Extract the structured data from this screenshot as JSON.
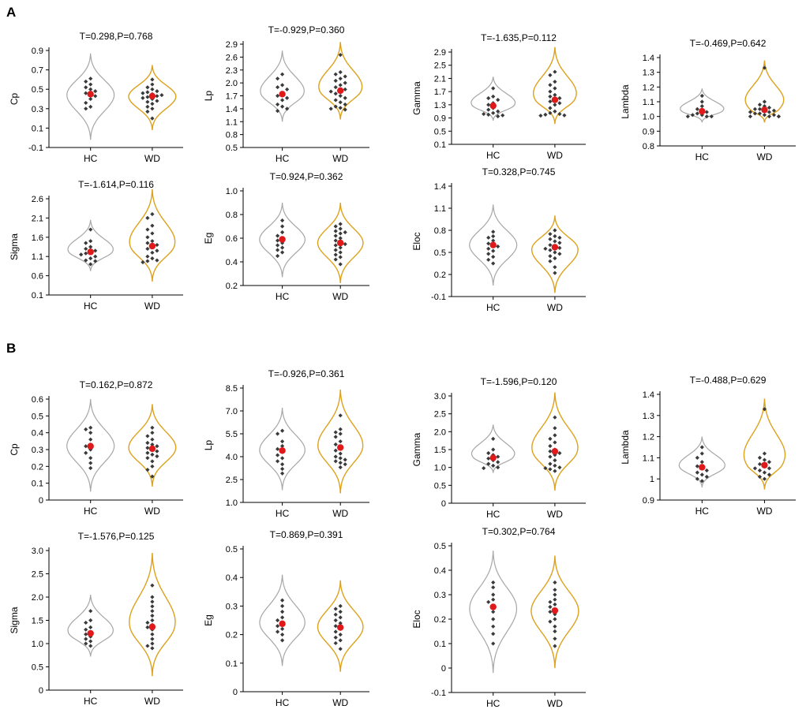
{
  "figure": {
    "panel_a_label": "A",
    "panel_b_label": "B"
  },
  "colors": {
    "hc_outline": "#a6a6a6",
    "wd_outline": "#dca21c",
    "point": "#3a3a3a",
    "mean": "#e0191b",
    "axis": "#000000"
  },
  "chart_data": [
    {
      "panel": "A",
      "type": "violin-dot",
      "title": "T=0.298,P=0.768",
      "ylabel": "Cp",
      "categories": [
        "HC",
        "WD"
      ],
      "ylim": [
        -0.1,
        0.9
      ],
      "yticks": [
        "-0.1",
        "0.1",
        "0.3",
        "0.5",
        "0.7",
        "0.9"
      ],
      "violin_range": {
        "HC": [
          -0.02,
          0.87
        ],
        "WD": [
          0.08,
          0.75
        ]
      },
      "mean": {
        "HC": 0.45,
        "WD": 0.43
      },
      "points": {
        "HC": [
          0.61,
          0.58,
          0.55,
          0.52,
          0.5,
          0.48,
          0.46,
          0.45,
          0.43,
          0.4,
          0.36,
          0.32,
          0.3
        ],
        "WD": [
          0.6,
          0.55,
          0.52,
          0.5,
          0.48,
          0.47,
          0.46,
          0.45,
          0.44,
          0.43,
          0.42,
          0.41,
          0.4,
          0.38,
          0.37,
          0.35,
          0.32,
          0.3,
          0.27,
          0.2
        ]
      }
    },
    {
      "panel": "A",
      "type": "violin-dot",
      "title": "T=-0.929,P=0.360",
      "ylabel": "Lp",
      "categories": [
        "HC",
        "WD"
      ],
      "ylim": [
        0.5,
        2.9
      ],
      "yticks": [
        "0.5",
        "0.8",
        "1.1",
        "1.4",
        "1.7",
        "2.0",
        "2.3",
        "2.6",
        "2.9"
      ],
      "violin_range": {
        "HC": [
          1.1,
          2.75
        ],
        "WD": [
          1.15,
          2.95
        ]
      },
      "mean": {
        "HC": 1.74,
        "WD": 1.82
      },
      "points": {
        "HC": [
          2.2,
          2.1,
          1.95,
          1.9,
          1.85,
          1.75,
          1.7,
          1.65,
          1.6,
          1.5,
          1.45,
          1.4,
          1.35
        ],
        "WD": [
          2.65,
          2.25,
          2.2,
          2.15,
          2.1,
          2.05,
          2.0,
          1.95,
          1.9,
          1.85,
          1.82,
          1.8,
          1.75,
          1.7,
          1.65,
          1.6,
          1.55,
          1.5,
          1.45,
          1.42,
          1.4,
          1.38
        ]
      }
    },
    {
      "panel": "A",
      "type": "violin-dot",
      "title": "T=-1.635,P=0.112",
      "ylabel": "Gamma",
      "categories": [
        "HC",
        "WD"
      ],
      "ylim": [
        0.1,
        2.9
      ],
      "yticks": [
        "0.1",
        "0.5",
        "0.9",
        "1.3",
        "1.7",
        "2.1",
        "2.5",
        "2.9"
      ],
      "violin_range": {
        "HC": [
          0.82,
          2.15
        ],
        "WD": [
          0.72,
          3.05
        ]
      },
      "mean": {
        "HC": 1.27,
        "WD": 1.45
      },
      "points": {
        "HC": [
          1.8,
          1.55,
          1.5,
          1.45,
          1.35,
          1.3,
          1.2,
          1.15,
          1.1,
          1.05,
          1.02,
          1.0,
          0.98,
          0.95
        ],
        "WD": [
          2.3,
          2.2,
          2.0,
          1.9,
          1.8,
          1.7,
          1.6,
          1.55,
          1.5,
          1.45,
          1.4,
          1.35,
          1.3,
          1.2,
          1.1,
          1.05,
          1.02,
          1.0,
          0.98,
          0.97
        ]
      }
    },
    {
      "panel": "A",
      "type": "violin-dot",
      "title": "T=-0.469,P=0.642",
      "ylabel": "Lambda",
      "categories": [
        "HC",
        "WD"
      ],
      "ylim": [
        0.8,
        1.4
      ],
      "yticks": [
        "0.8",
        "0.9",
        "1.0",
        "1.1",
        "1.2",
        "1.3",
        "1.4"
      ],
      "violin_range": {
        "HC": [
          0.96,
          1.19
        ],
        "WD": [
          0.96,
          1.38
        ]
      },
      "mean": {
        "HC": 1.035,
        "WD": 1.045
      },
      "points": {
        "HC": [
          1.14,
          1.1,
          1.07,
          1.05,
          1.04,
          1.03,
          1.02,
          1.01,
          1.01,
          1.0,
          1.0,
          1.0
        ],
        "WD": [
          1.33,
          1.1,
          1.08,
          1.07,
          1.06,
          1.05,
          1.05,
          1.04,
          1.04,
          1.03,
          1.03,
          1.02,
          1.02,
          1.01,
          1.01,
          1.0,
          1.0,
          1.0,
          1.0
        ]
      }
    },
    {
      "panel": "A",
      "type": "violin-dot",
      "title": "T=-1.614,P=0.116",
      "ylabel": "Sigma",
      "categories": [
        "HC",
        "WD"
      ],
      "ylim": [
        0.1,
        2.6
      ],
      "yticks": [
        "0.1",
        "0.6",
        "1.1",
        "1.6",
        "2.1",
        "2.6"
      ],
      "violin_range": {
        "HC": [
          0.72,
          2.05
        ],
        "WD": [
          0.45,
          2.85
        ]
      },
      "mean": {
        "HC": 1.22,
        "WD": 1.37
      },
      "points": {
        "HC": [
          1.8,
          1.5,
          1.45,
          1.35,
          1.3,
          1.25,
          1.2,
          1.18,
          1.15,
          1.1,
          1.05,
          1.0,
          0.98,
          0.9
        ],
        "WD": [
          2.2,
          2.1,
          1.9,
          1.8,
          1.7,
          1.6,
          1.5,
          1.45,
          1.4,
          1.35,
          1.3,
          1.25,
          1.2,
          1.1,
          1.05,
          1.0,
          0.98,
          0.95
        ]
      }
    },
    {
      "panel": "A",
      "type": "violin-dot",
      "title": "T=0.924,P=0.362",
      "ylabel": "Eg",
      "categories": [
        "HC",
        "WD"
      ],
      "ylim": [
        0.2,
        1.0
      ],
      "yticks": [
        "0.2",
        "0.4",
        "0.6",
        "0.8",
        "1.0"
      ],
      "violin_range": {
        "HC": [
          0.27,
          0.9
        ],
        "WD": [
          0.22,
          0.9
        ]
      },
      "mean": {
        "HC": 0.59,
        "WD": 0.56
      },
      "points": {
        "HC": [
          0.75,
          0.7,
          0.65,
          0.62,
          0.6,
          0.58,
          0.56,
          0.54,
          0.52,
          0.5,
          0.48,
          0.45
        ],
        "WD": [
          0.72,
          0.7,
          0.68,
          0.66,
          0.65,
          0.64,
          0.62,
          0.6,
          0.58,
          0.56,
          0.55,
          0.54,
          0.52,
          0.5,
          0.48,
          0.46,
          0.44,
          0.42,
          0.38
        ]
      }
    },
    {
      "panel": "A",
      "type": "violin-dot",
      "title": "T=0.328,P=0.745",
      "ylabel": "Eloc",
      "categories": [
        "HC",
        "WD"
      ],
      "ylim": [
        -0.1,
        1.4
      ],
      "yticks": [
        "-0.1",
        "0.2",
        "0.5",
        "0.8",
        "1.1",
        "1.4"
      ],
      "violin_range": {
        "HC": [
          0.05,
          1.15
        ],
        "WD": [
          -0.05,
          1.0
        ]
      },
      "mean": {
        "HC": 0.6,
        "WD": 0.57
      },
      "points": {
        "HC": [
          0.78,
          0.72,
          0.7,
          0.66,
          0.62,
          0.6,
          0.58,
          0.55,
          0.52,
          0.48,
          0.44,
          0.4,
          0.35
        ],
        "WD": [
          0.8,
          0.75,
          0.72,
          0.7,
          0.68,
          0.65,
          0.63,
          0.6,
          0.58,
          0.56,
          0.55,
          0.53,
          0.5,
          0.48,
          0.45,
          0.42,
          0.38,
          0.3,
          0.22
        ]
      }
    },
    {
      "panel": "B",
      "type": "violin-dot",
      "title": "T=0.162,P=0.872",
      "ylabel": "Cp",
      "categories": [
        "HC",
        "WD"
      ],
      "ylim": [
        0,
        0.6
      ],
      "yticks": [
        "0",
        "0.1",
        "0.2",
        "0.3",
        "0.4",
        "0.5",
        "0.6"
      ],
      "violin_range": {
        "HC": [
          0.05,
          0.6
        ],
        "WD": [
          0.08,
          0.57
        ]
      },
      "mean": {
        "HC": 0.32,
        "WD": 0.305
      },
      "points": {
        "HC": [
          0.43,
          0.42,
          0.4,
          0.36,
          0.33,
          0.32,
          0.3,
          0.28,
          0.25,
          0.22,
          0.19
        ],
        "WD": [
          0.43,
          0.4,
          0.38,
          0.36,
          0.34,
          0.33,
          0.32,
          0.31,
          0.3,
          0.29,
          0.28,
          0.27,
          0.26,
          0.25,
          0.23,
          0.2,
          0.18,
          0.14
        ]
      }
    },
    {
      "panel": "B",
      "type": "violin-dot",
      "title": "T=-0.926,P=0.361",
      "ylabel": "Lp",
      "categories": [
        "HC",
        "WD"
      ],
      "ylim": [
        1.0,
        8.5
      ],
      "yticks": [
        "1.0",
        "2.5",
        "4.0",
        "5.5",
        "7.0",
        "8.5"
      ],
      "violin_range": {
        "HC": [
          1.8,
          7.2
        ],
        "WD": [
          1.6,
          8.4
        ]
      },
      "mean": {
        "HC": 4.4,
        "WD": 4.6
      },
      "points": {
        "HC": [
          5.7,
          5.5,
          5.0,
          4.7,
          4.5,
          4.3,
          4.1,
          3.9,
          3.7,
          3.5,
          3.2,
          2.9
        ],
        "WD": [
          6.7,
          5.8,
          5.6,
          5.5,
          5.3,
          5.0,
          4.8,
          4.6,
          4.4,
          4.2,
          4.0,
          3.9,
          3.8,
          3.7,
          3.6,
          3.5,
          3.3
        ]
      }
    },
    {
      "panel": "B",
      "type": "violin-dot",
      "title": "T=-1.596,P=0.120",
      "ylabel": "Gamma",
      "categories": [
        "HC",
        "WD"
      ],
      "ylim": [
        0,
        3.0
      ],
      "yticks": [
        "0",
        "0.5",
        "1.0",
        "1.5",
        "2.0",
        "2.5",
        "3.0"
      ],
      "violin_range": {
        "HC": [
          0.85,
          2.2
        ],
        "WD": [
          0.35,
          3.1
        ]
      },
      "mean": {
        "HC": 1.27,
        "WD": 1.45
      },
      "points": {
        "HC": [
          1.8,
          1.5,
          1.4,
          1.35,
          1.3,
          1.25,
          1.2,
          1.15,
          1.1,
          1.05,
          1.0,
          0.98
        ],
        "WD": [
          2.4,
          2.1,
          1.9,
          1.8,
          1.7,
          1.6,
          1.5,
          1.45,
          1.4,
          1.35,
          1.3,
          1.2,
          1.1,
          1.05,
          1.0,
          0.98,
          0.95,
          0.9
        ]
      }
    },
    {
      "panel": "B",
      "type": "violin-dot",
      "title": "T=-0.488,P=0.629",
      "ylabel": "Lambda",
      "categories": [
        "HC",
        "WD"
      ],
      "ylim": [
        0.9,
        1.4
      ],
      "yticks": [
        "0.9",
        "1",
        "1.1",
        "1.2",
        "1.3",
        "1.4"
      ],
      "violin_range": {
        "HC": [
          0.96,
          1.2
        ],
        "WD": [
          0.95,
          1.38
        ]
      },
      "mean": {
        "HC": 1.055,
        "WD": 1.065
      },
      "points": {
        "HC": [
          1.15,
          1.12,
          1.1,
          1.08,
          1.06,
          1.05,
          1.04,
          1.03,
          1.02,
          1.01,
          1.0,
          0.99
        ],
        "WD": [
          1.33,
          1.12,
          1.1,
          1.09,
          1.08,
          1.07,
          1.06,
          1.05,
          1.05,
          1.04,
          1.03,
          1.02,
          1.01,
          1.0
        ]
      }
    },
    {
      "panel": "B",
      "type": "violin-dot",
      "title": "T=-1.576,P=0.125",
      "ylabel": "Sigma",
      "categories": [
        "HC",
        "WD"
      ],
      "ylim": [
        0,
        3.0
      ],
      "yticks": [
        "0",
        "0.5",
        "1.0",
        "1.5",
        "2.0",
        "2.5",
        "3.0"
      ],
      "violin_range": {
        "HC": [
          0.72,
          2.05
        ],
        "WD": [
          0.3,
          2.95
        ]
      },
      "mean": {
        "HC": 1.22,
        "WD": 1.36
      },
      "points": {
        "HC": [
          1.7,
          1.5,
          1.45,
          1.35,
          1.3,
          1.25,
          1.2,
          1.15,
          1.1,
          1.05,
          1.0,
          0.95
        ],
        "WD": [
          2.25,
          2.0,
          1.9,
          1.8,
          1.7,
          1.6,
          1.5,
          1.45,
          1.4,
          1.35,
          1.3,
          1.2,
          1.1,
          1.0,
          0.95,
          0.9
        ]
      }
    },
    {
      "panel": "B",
      "type": "violin-dot",
      "title": "T=0.869,P=0.391",
      "ylabel": "Eg",
      "categories": [
        "HC",
        "WD"
      ],
      "ylim": [
        0,
        0.5
      ],
      "yticks": [
        "0",
        "0.1",
        "0.2",
        "0.3",
        "0.4",
        "0.5"
      ],
      "violin_range": {
        "HC": [
          0.09,
          0.41
        ],
        "WD": [
          0.07,
          0.39
        ]
      },
      "mean": {
        "HC": 0.238,
        "WD": 0.225
      },
      "points": {
        "HC": [
          0.32,
          0.3,
          0.28,
          0.26,
          0.25,
          0.24,
          0.23,
          0.22,
          0.21,
          0.2,
          0.18
        ],
        "WD": [
          0.3,
          0.29,
          0.28,
          0.27,
          0.26,
          0.25,
          0.24,
          0.23,
          0.22,
          0.21,
          0.2,
          0.19,
          0.18,
          0.17,
          0.15
        ]
      }
    },
    {
      "panel": "B",
      "type": "violin-dot",
      "title": "T=0.302,P=0.764",
      "ylabel": "Eloc",
      "categories": [
        "HC",
        "WD"
      ],
      "ylim": [
        -0.1,
        0.5
      ],
      "yticks": [
        "-0.1",
        "0",
        "0.1",
        "0.2",
        "0.3",
        "0.4",
        "0.5"
      ],
      "violin_range": {
        "HC": [
          -0.02,
          0.48
        ],
        "WD": [
          0.0,
          0.46
        ]
      },
      "mean": {
        "HC": 0.25,
        "WD": 0.235
      },
      "points": {
        "HC": [
          0.35,
          0.33,
          0.3,
          0.28,
          0.27,
          0.25,
          0.23,
          0.2,
          0.17,
          0.14,
          0.1
        ],
        "WD": [
          0.35,
          0.32,
          0.3,
          0.28,
          0.27,
          0.26,
          0.25,
          0.24,
          0.23,
          0.22,
          0.2,
          0.19,
          0.17,
          0.15,
          0.12,
          0.09
        ]
      }
    }
  ]
}
